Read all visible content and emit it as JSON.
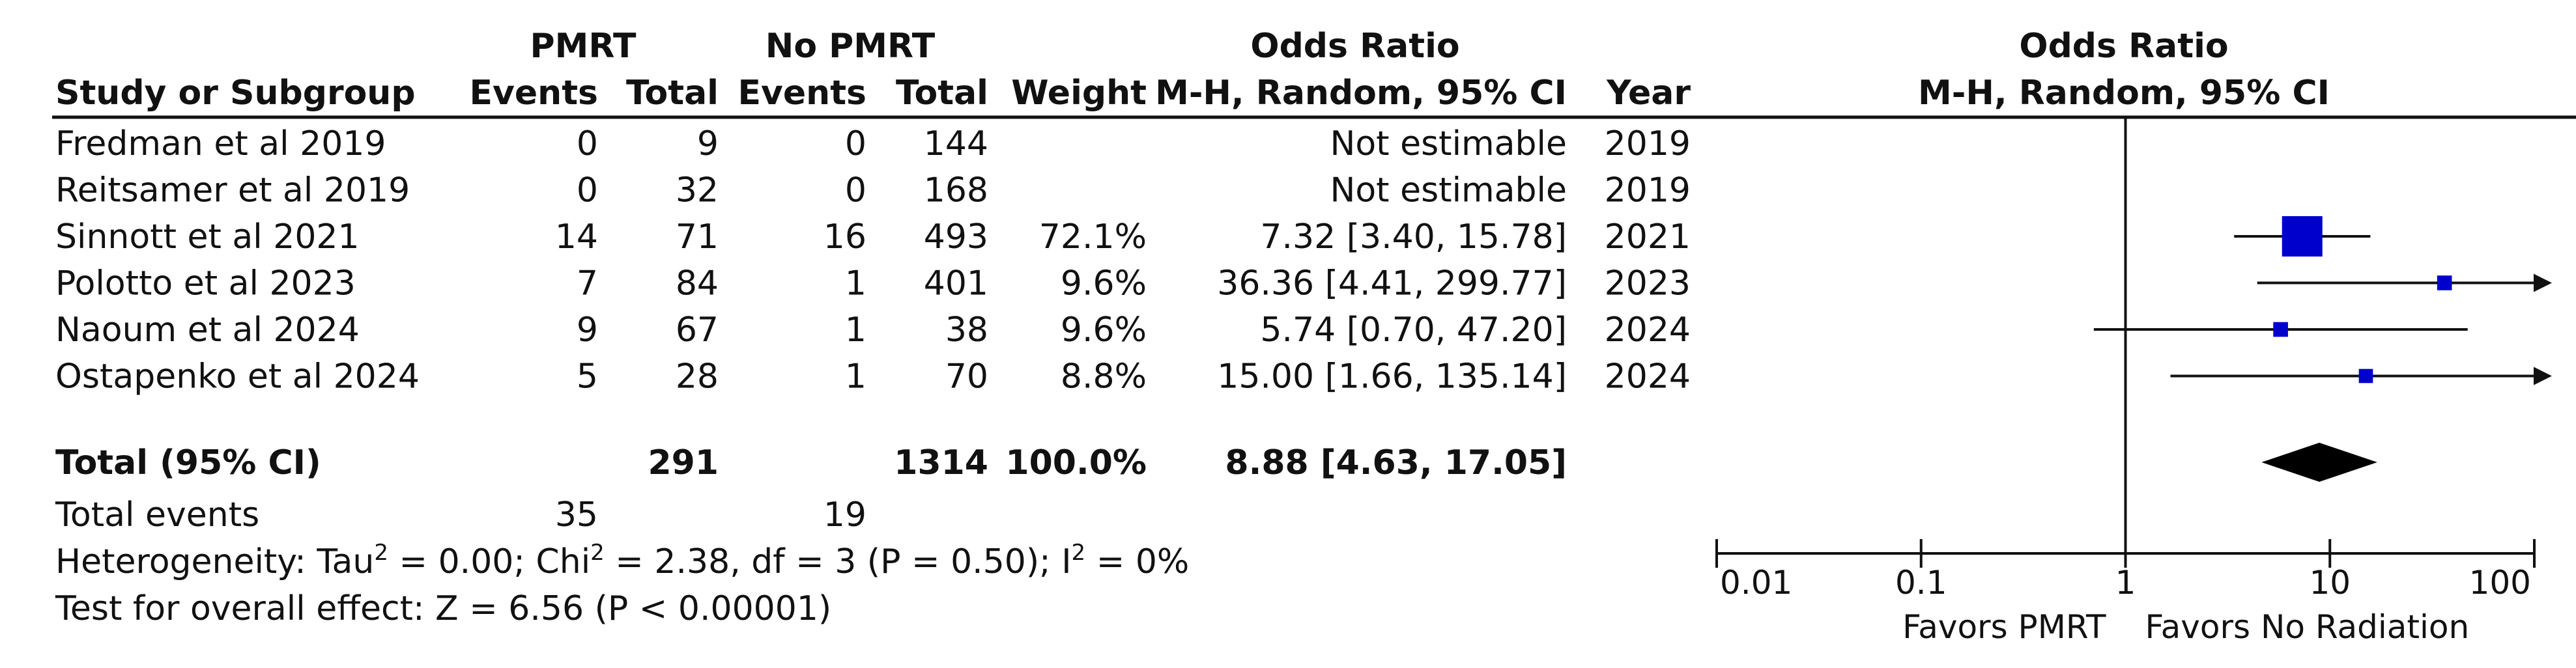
{
  "headers": {
    "group1_title": "PMRT",
    "group2_title": "No PMRT",
    "or_title": "Odds Ratio",
    "col_study": "Study or Subgroup",
    "col_events1": "Events",
    "col_total1": "Total",
    "col_events2": "Events",
    "col_total2": "Total",
    "col_weight": "Weight",
    "col_method": "M-H, Random, 95% CI",
    "col_year": "Year",
    "plot_title": "Odds Ratio",
    "plot_method": "M-H, Random, 95% CI"
  },
  "studies": [
    {
      "name": "Fredman et al 2019",
      "events1": "0",
      "total1": "9",
      "events2": "0",
      "total2": "144",
      "weight": "",
      "ci_text": "Not estimable",
      "year": "2019"
    },
    {
      "name": "Reitsamer et al 2019",
      "events1": "0",
      "total1": "32",
      "events2": "0",
      "total2": "168",
      "weight": "",
      "ci_text": "Not estimable",
      "year": "2019"
    },
    {
      "name": "Sinnott et al 2021",
      "events1": "14",
      "total1": "71",
      "events2": "16",
      "total2": "493",
      "weight": "72.1%",
      "ci_text": "7.32 [3.40, 15.78]",
      "year": "2021"
    },
    {
      "name": "Polotto et al 2023",
      "events1": "7",
      "total1": "84",
      "events2": "1",
      "total2": "401",
      "weight": "9.6%",
      "ci_text": "36.36 [4.41, 299.77]",
      "year": "2023"
    },
    {
      "name": "Naoum et al 2024",
      "events1": "9",
      "total1": "67",
      "events2": "1",
      "total2": "38",
      "weight": "9.6%",
      "ci_text": "5.74 [0.70, 47.20]",
      "year": "2024"
    },
    {
      "name": "Ostapenko et al 2024",
      "events1": "5",
      "total1": "28",
      "events2": "1",
      "total2": "70",
      "weight": "8.8%",
      "ci_text": "15.00 [1.66, 135.14]",
      "year": "2024"
    }
  ],
  "total_row": {
    "label": "Total (95% CI)",
    "total1": "291",
    "total2": "1314",
    "weight": "100.0%",
    "ci_text": "8.88 [4.63, 17.05]"
  },
  "events_row": {
    "label": "Total events",
    "events1": "35",
    "events2": "19"
  },
  "heterogeneity": {
    "prefix": "Heterogeneity: Tau",
    "chi": " = 0.00; Chi",
    "df": " = 2.38, df = 3 (P = 0.50); I",
    "end": " = 0%",
    "sup": "2"
  },
  "overall_effect": "Test for overall effect: Z = 6.56 (P < 0.00001)",
  "axis": {
    "ticks": [
      0.01,
      0.1,
      1,
      10,
      100
    ],
    "tick_labels": [
      "0.01",
      "0.1",
      "1",
      "10",
      "100"
    ],
    "favors_left": "Favors PMRT",
    "favors_right": "Favors No Radiation",
    "scale": "log"
  },
  "colors": {
    "marker": "#0000cc",
    "diamond": "#000000",
    "text": "#111111"
  },
  "chart_data": {
    "type": "forest",
    "xscale": "log",
    "xlim": [
      0.01,
      100
    ],
    "studies": [
      {
        "name": "Sinnott et al 2021",
        "or": 7.32,
        "lo": 3.4,
        "hi": 15.78,
        "weight": 72.1
      },
      {
        "name": "Polotto et al 2023",
        "or": 36.36,
        "lo": 4.41,
        "hi": 299.77,
        "weight": 9.6
      },
      {
        "name": "Naoum et al 2024",
        "or": 5.74,
        "lo": 0.7,
        "hi": 47.2,
        "weight": 9.6
      },
      {
        "name": "Ostapenko et al 2024",
        "or": 15.0,
        "lo": 1.66,
        "hi": 135.14,
        "weight": 8.8
      }
    ],
    "pooled": {
      "or": 8.88,
      "lo": 4.63,
      "hi": 17.05
    }
  }
}
